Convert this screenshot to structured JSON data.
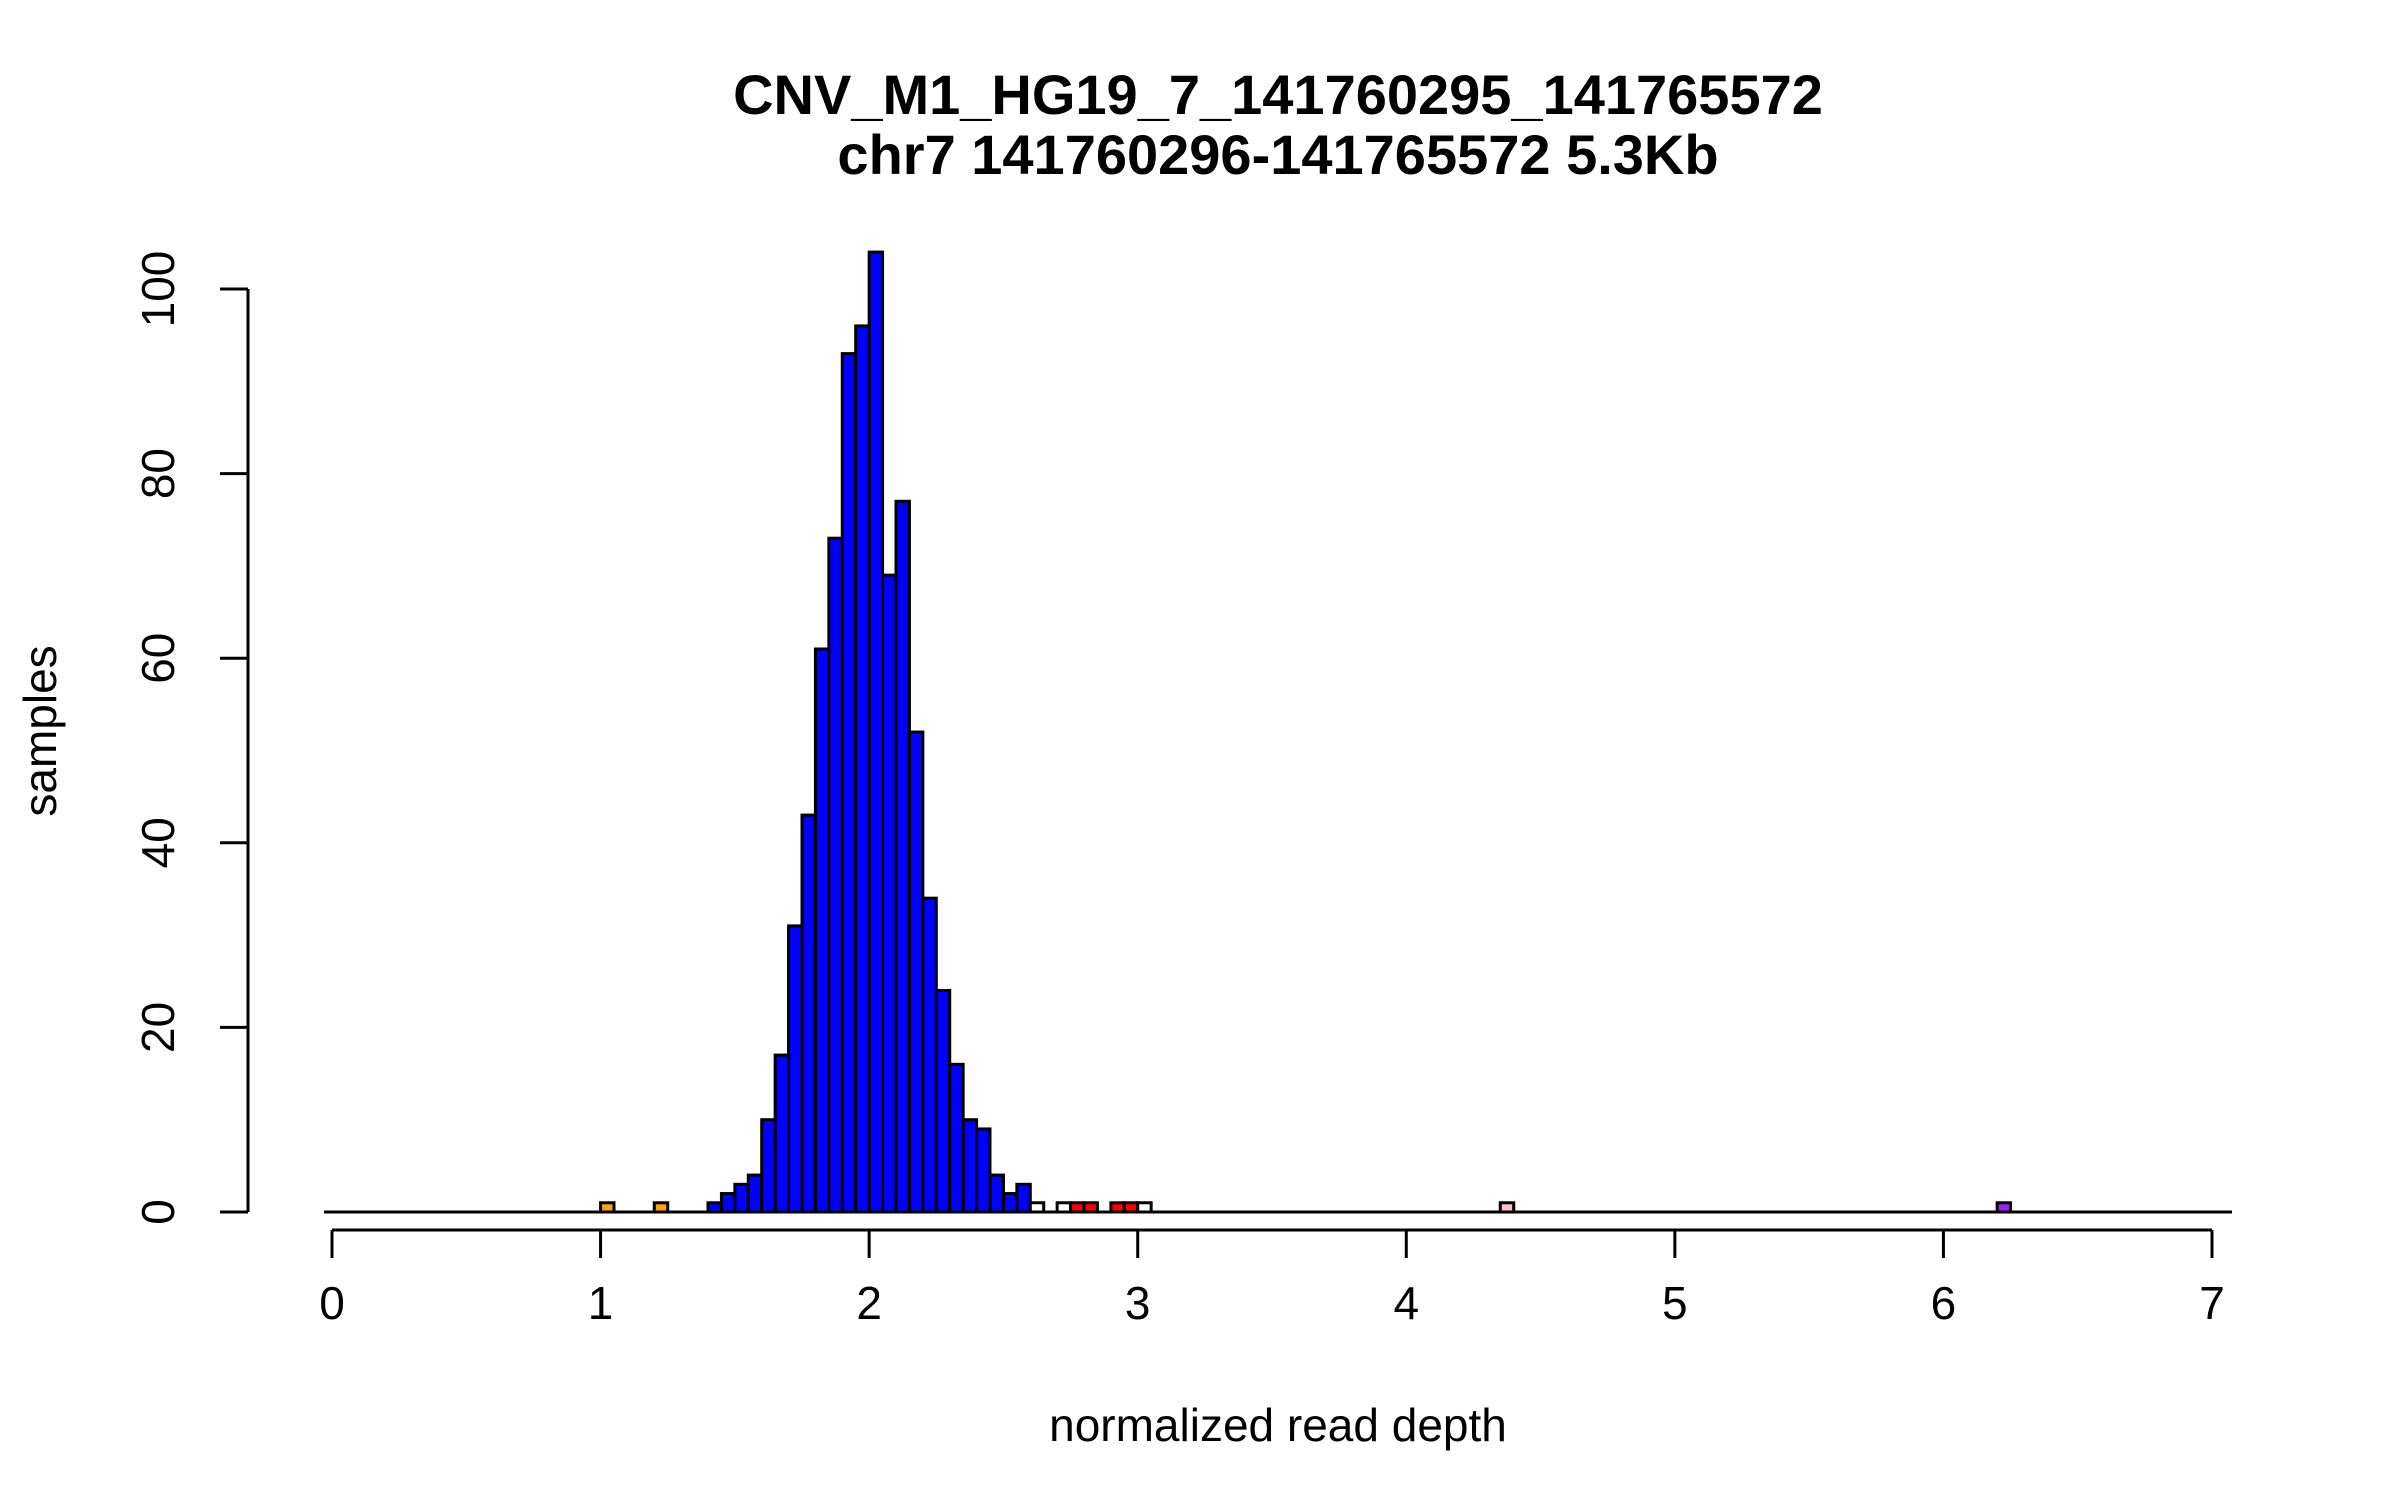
{
  "chart_data": {
    "type": "bar",
    "title": "CNV_M1_HG19_7_141760295_141765572",
    "subtitle": "chr7 141760296-141765572 5.3Kb",
    "xlabel": "normalized read depth",
    "ylabel": "samples",
    "xlim": [
      0,
      7
    ],
    "ylim": [
      0,
      104
    ],
    "x_ticks": [
      0,
      1,
      2,
      3,
      4,
      5,
      6,
      7
    ],
    "y_ticks": [
      0,
      20,
      40,
      60,
      80,
      100
    ],
    "bin_width": 0.05,
    "colors": {
      "main": "#0000ff",
      "loss": "#ffa500",
      "gain": "#ff0000",
      "outlier": "#ffc0cb",
      "high": "#a020f0",
      "empty": "#ffffff",
      "stroke": "#000000"
    },
    "bins": [
      {
        "x": 1.0,
        "value": 1,
        "color": "loss"
      },
      {
        "x": 1.2,
        "value": 1,
        "color": "loss"
      },
      {
        "x": 1.4,
        "value": 1,
        "color": "main"
      },
      {
        "x": 1.45,
        "value": 2,
        "color": "main"
      },
      {
        "x": 1.5,
        "value": 3,
        "color": "main"
      },
      {
        "x": 1.55,
        "value": 4,
        "color": "main"
      },
      {
        "x": 1.6,
        "value": 10,
        "color": "main"
      },
      {
        "x": 1.65,
        "value": 17,
        "color": "main"
      },
      {
        "x": 1.7,
        "value": 31,
        "color": "main"
      },
      {
        "x": 1.75,
        "value": 43,
        "color": "main"
      },
      {
        "x": 1.8,
        "value": 61,
        "color": "main"
      },
      {
        "x": 1.85,
        "value": 73,
        "color": "main"
      },
      {
        "x": 1.9,
        "value": 93,
        "color": "main"
      },
      {
        "x": 1.95,
        "value": 96,
        "color": "main"
      },
      {
        "x": 2.0,
        "value": 104,
        "color": "main"
      },
      {
        "x": 2.05,
        "value": 69,
        "color": "main"
      },
      {
        "x": 2.1,
        "value": 77,
        "color": "main"
      },
      {
        "x": 2.15,
        "value": 52,
        "color": "main"
      },
      {
        "x": 2.2,
        "value": 34,
        "color": "main"
      },
      {
        "x": 2.25,
        "value": 24,
        "color": "main"
      },
      {
        "x": 2.3,
        "value": 16,
        "color": "main"
      },
      {
        "x": 2.35,
        "value": 10,
        "color": "main"
      },
      {
        "x": 2.4,
        "value": 9,
        "color": "main"
      },
      {
        "x": 2.45,
        "value": 4,
        "color": "main"
      },
      {
        "x": 2.5,
        "value": 2,
        "color": "main"
      },
      {
        "x": 2.55,
        "value": 3,
        "color": "main"
      },
      {
        "x": 2.6,
        "value": 1,
        "color": "empty"
      },
      {
        "x": 2.7,
        "value": 1,
        "color": "empty"
      },
      {
        "x": 2.75,
        "value": 1,
        "color": "gain"
      },
      {
        "x": 2.8,
        "value": 1,
        "color": "gain"
      },
      {
        "x": 2.9,
        "value": 1,
        "color": "gain"
      },
      {
        "x": 2.95,
        "value": 1,
        "color": "gain"
      },
      {
        "x": 3.0,
        "value": 1,
        "color": "empty"
      },
      {
        "x": 4.35,
        "value": 1,
        "color": "outlier"
      },
      {
        "x": 6.2,
        "value": 1,
        "color": "high"
      }
    ]
  }
}
